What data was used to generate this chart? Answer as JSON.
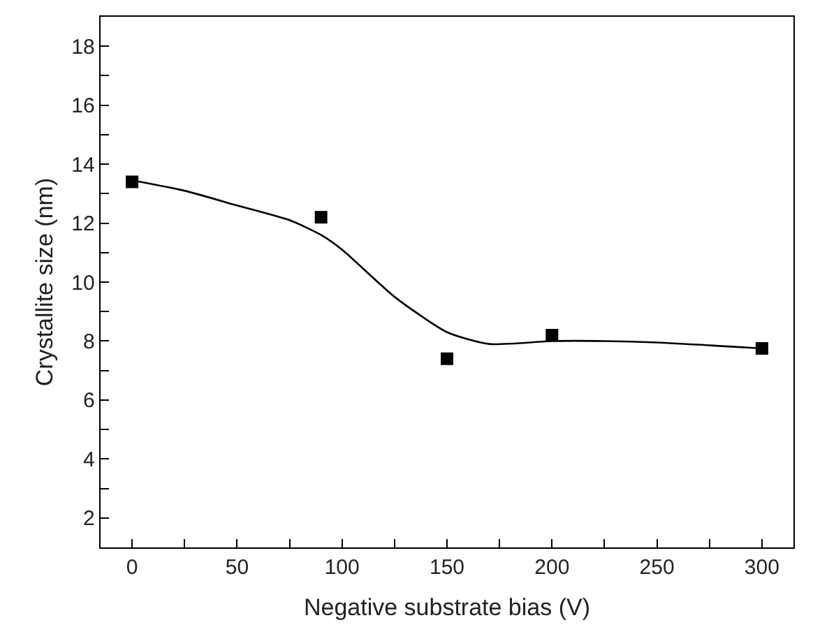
{
  "chart_data": {
    "type": "scatter",
    "xlabel": "Negative substrate bias (V)",
    "ylabel": "Crystallite size (nm)",
    "x": [
      0,
      90,
      150,
      200,
      300
    ],
    "series": [
      {
        "color": "#000000",
        "marker": "square",
        "values": [
          13.4,
          12.2,
          7.4,
          8.2,
          7.75
        ]
      },
      {
        "type": "line",
        "color": "#000000",
        "marker": "none",
        "line_style": "solid",
        "x": [
          0,
          25,
          50,
          75,
          90,
          100,
          125,
          150,
          170,
          200,
          225,
          250,
          300
        ],
        "values": [
          13.45,
          13.1,
          12.6,
          12.1,
          11.6,
          11.1,
          9.5,
          8.3,
          7.9,
          8.0,
          8.0,
          7.95,
          7.75
        ]
      }
    ],
    "xlim": [
      -15,
      315
    ],
    "ylim": [
      1,
      19
    ],
    "xticks": [
      0,
      {
        "value": 25,
        "label": null
      },
      50,
      {
        "value": 75,
        "label": null
      },
      100,
      {
        "value": 125,
        "label": null
      },
      150,
      {
        "value": 175,
        "label": null
      },
      200,
      {
        "value": 225,
        "label": null
      },
      250,
      {
        "value": 275,
        "label": null
      },
      300
    ],
    "yticks": [
      2,
      {
        "value": 3,
        "label": null
      },
      4,
      {
        "value": 5,
        "label": null
      },
      6,
      {
        "value": 7,
        "label": null
      },
      8,
      {
        "value": 9,
        "label": null
      },
      10,
      {
        "value": 11,
        "label": null
      },
      12,
      {
        "value": 13,
        "label": null
      },
      14,
      {
        "value": 15,
        "label": null
      },
      16,
      {
        "value": 17,
        "label": null
      },
      18
    ],
    "legend": false
  }
}
